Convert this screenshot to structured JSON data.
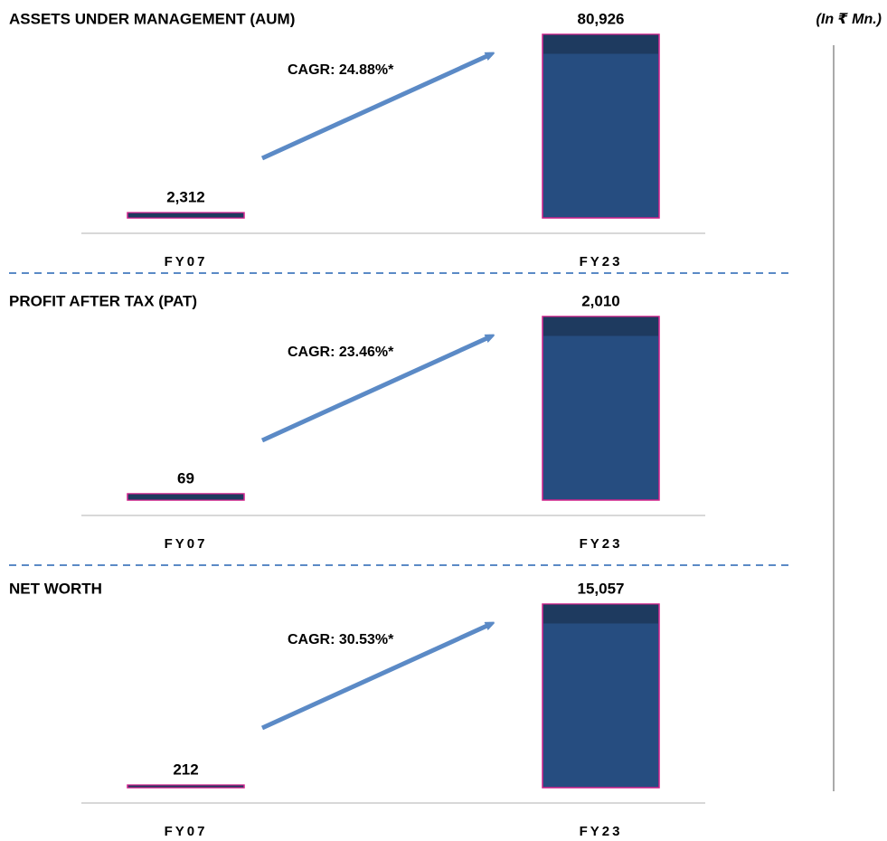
{
  "unit_note": "(In ₹ Mn.)",
  "chart_data": [
    {
      "type": "bar",
      "title": "ASSETS UNDER MANAGEMENT (AUM)",
      "categories": [
        "FY07",
        "FY23"
      ],
      "values": [
        2312,
        80926
      ],
      "value_labels": [
        "2,312",
        "80,926"
      ],
      "color": "#264d80",
      "annotation": "CAGR: 24.88%*"
    },
    {
      "type": "bar",
      "title": "PROFIT AFTER TAX (PAT)",
      "categories": [
        "FY07",
        "FY23"
      ],
      "values": [
        69,
        2010
      ],
      "value_labels": [
        "69",
        "2,010"
      ],
      "color": "#264d80",
      "annotation": "CAGR: 23.46%*"
    },
    {
      "type": "bar",
      "title": "NET WORTH",
      "categories": [
        "FY07",
        "FY23"
      ],
      "values": [
        212,
        15057
      ],
      "value_labels": [
        "212",
        "15,057"
      ],
      "color": "#264d80",
      "annotation": "CAGR: 30.53%*"
    }
  ]
}
